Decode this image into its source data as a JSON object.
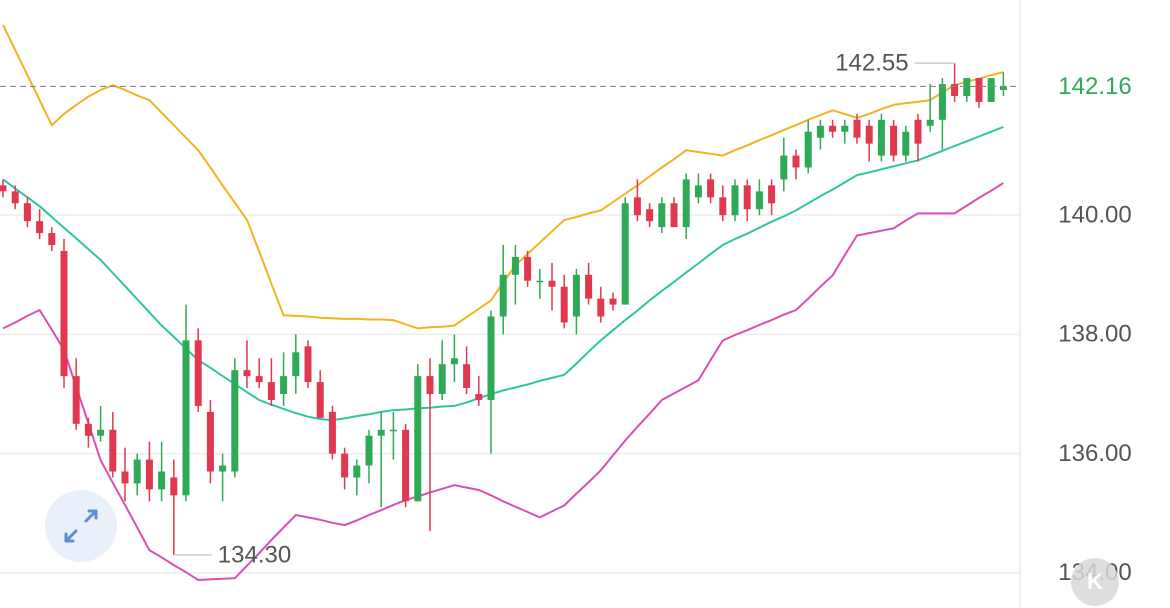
{
  "chart_data": {
    "type": "candlestick",
    "ylim": [
      133.41,
      143.61
    ],
    "yticks": [
      {
        "value": 134,
        "label": "134.00"
      },
      {
        "value": 136,
        "label": "136.00"
      },
      {
        "value": 138,
        "label": "138.00"
      },
      {
        "value": 140,
        "label": "140.00"
      }
    ],
    "grid": true,
    "up_color": "#2eaa57",
    "down_color": "#e0394f",
    "ohlc": [
      [
        140.5,
        140.6,
        140.3,
        140.4
      ],
      [
        140.4,
        140.5,
        140.1,
        140.2
      ],
      [
        140.2,
        140.3,
        139.8,
        139.9
      ],
      [
        139.9,
        140.1,
        139.6,
        139.7
      ],
      [
        139.7,
        139.8,
        139.4,
        139.5
      ],
      [
        139.4,
        139.6,
        137.1,
        137.3
      ],
      [
        137.3,
        137.6,
        136.4,
        136.5
      ],
      [
        136.5,
        136.6,
        136.1,
        136.3
      ],
      [
        136.3,
        136.8,
        136.2,
        136.4
      ],
      [
        136.4,
        136.7,
        135.6,
        135.7
      ],
      [
        135.7,
        136.1,
        135.2,
        135.5
      ],
      [
        135.5,
        136.0,
        135.3,
        135.9
      ],
      [
        135.9,
        136.2,
        135.2,
        135.4
      ],
      [
        135.4,
        136.2,
        135.2,
        135.7
      ],
      [
        135.6,
        135.9,
        134.3,
        135.3
      ],
      [
        135.3,
        138.5,
        135.2,
        137.9
      ],
      [
        137.9,
        138.1,
        136.7,
        136.8
      ],
      [
        136.7,
        136.9,
        135.5,
        135.7
      ],
      [
        135.7,
        136.0,
        135.2,
        135.8
      ],
      [
        135.7,
        137.6,
        135.6,
        137.4
      ],
      [
        137.4,
        137.9,
        137.1,
        137.3
      ],
      [
        137.3,
        137.6,
        137.1,
        137.2
      ],
      [
        137.2,
        137.6,
        136.8,
        136.9
      ],
      [
        137.0,
        137.7,
        136.8,
        137.3
      ],
      [
        137.3,
        138.0,
        137.0,
        137.7
      ],
      [
        137.8,
        137.9,
        137.1,
        137.2
      ],
      [
        137.2,
        137.4,
        136.6,
        136.6
      ],
      [
        136.7,
        136.8,
        135.9,
        136.0
      ],
      [
        136.0,
        136.1,
        135.4,
        135.6
      ],
      [
        135.6,
        135.9,
        135.3,
        135.8
      ],
      [
        135.8,
        136.4,
        135.5,
        136.3
      ],
      [
        136.3,
        136.7,
        135.1,
        136.4
      ],
      [
        136.4,
        136.7,
        135.9,
        136.4
      ],
      [
        136.4,
        136.5,
        135.1,
        135.2
      ],
      [
        135.2,
        137.5,
        135.2,
        137.3
      ],
      [
        137.3,
        137.6,
        134.7,
        137.0
      ],
      [
        137.0,
        137.9,
        136.9,
        137.5
      ],
      [
        137.5,
        138.0,
        137.2,
        137.6
      ],
      [
        137.5,
        137.8,
        137.0,
        137.1
      ],
      [
        137.0,
        137.3,
        136.8,
        136.9
      ],
      [
        136.9,
        138.4,
        136.0,
        138.3
      ],
      [
        138.3,
        139.5,
        138.0,
        139.0
      ],
      [
        139.0,
        139.5,
        138.5,
        139.3
      ],
      [
        139.3,
        139.4,
        138.8,
        138.9
      ],
      [
        138.9,
        139.1,
        138.6,
        138.9
      ],
      [
        138.9,
        139.2,
        138.4,
        138.8
      ],
      [
        138.8,
        139.0,
        138.1,
        138.2
      ],
      [
        138.3,
        139.1,
        138.0,
        139.0
      ],
      [
        139.0,
        139.2,
        138.5,
        138.6
      ],
      [
        138.6,
        138.8,
        138.2,
        138.3
      ],
      [
        138.6,
        138.7,
        138.4,
        138.5
      ],
      [
        138.5,
        140.3,
        138.5,
        140.2
      ],
      [
        140.3,
        140.6,
        139.9,
        140.0
      ],
      [
        140.1,
        140.2,
        139.8,
        139.9
      ],
      [
        139.8,
        140.3,
        139.7,
        140.2
      ],
      [
        140.2,
        140.3,
        139.8,
        139.8
      ],
      [
        139.8,
        140.7,
        139.6,
        140.6
      ],
      [
        140.3,
        140.7,
        140.2,
        140.5
      ],
      [
        140.6,
        140.7,
        140.2,
        140.3
      ],
      [
        140.3,
        140.5,
        139.9,
        140.0
      ],
      [
        140.0,
        140.6,
        139.9,
        140.5
      ],
      [
        140.5,
        140.6,
        139.9,
        140.1
      ],
      [
        140.1,
        140.6,
        140.0,
        140.4
      ],
      [
        140.5,
        140.6,
        140.0,
        140.2
      ],
      [
        140.6,
        141.3,
        140.4,
        141.0
      ],
      [
        141.0,
        141.1,
        140.6,
        140.8
      ],
      [
        140.8,
        141.6,
        140.7,
        141.4
      ],
      [
        141.3,
        141.6,
        141.1,
        141.5
      ],
      [
        141.5,
        141.6,
        141.3,
        141.4
      ],
      [
        141.4,
        141.6,
        141.2,
        141.5
      ],
      [
        141.6,
        141.7,
        141.2,
        141.3
      ],
      [
        141.5,
        141.6,
        140.9,
        141.2
      ],
      [
        141.0,
        141.7,
        140.9,
        141.6
      ],
      [
        141.5,
        141.6,
        140.9,
        141.0
      ],
      [
        141.0,
        141.5,
        140.9,
        141.4
      ],
      [
        141.6,
        141.7,
        140.9,
        141.2
      ],
      [
        141.5,
        142.2,
        141.4,
        141.6
      ],
      [
        141.6,
        142.3,
        141.1,
        142.2
      ],
      [
        142.2,
        142.55,
        141.9,
        142.0
      ],
      [
        142.0,
        142.3,
        141.9,
        142.3
      ],
      [
        142.3,
        142.3,
        141.8,
        141.9
      ],
      [
        141.9,
        142.3,
        141.9,
        142.3
      ],
      [
        142.1,
        142.4,
        142.0,
        142.16
      ]
    ],
    "lines": [
      {
        "color": "#f0b323",
        "values": [
          143.19,
          142.77,
          142.35,
          141.93,
          141.51,
          141.7,
          141.85,
          141.99,
          142.1,
          142.18,
          142.1,
          142.01,
          141.93,
          141.72,
          141.51,
          141.3,
          141.09,
          140.8,
          140.5,
          140.21,
          139.92,
          139.39,
          138.85,
          138.32,
          138.31,
          138.3,
          138.28,
          138.27,
          138.26,
          138.26,
          138.25,
          138.25,
          138.24,
          138.17,
          138.1,
          138.12,
          138.13,
          138.15,
          138.29,
          138.43,
          138.57,
          138.87,
          139.16,
          139.35,
          139.54,
          139.73,
          139.92,
          139.97,
          140.03,
          140.08,
          140.22,
          140.36,
          140.5,
          140.65,
          140.8,
          140.94,
          141.09,
          141.06,
          141.03,
          141.0,
          141.09,
          141.17,
          141.26,
          141.34,
          141.43,
          141.51,
          141.6,
          141.68,
          141.76,
          141.7,
          141.63,
          141.7,
          141.78,
          141.85,
          141.88,
          141.9,
          141.93,
          142.06,
          142.18,
          142.24,
          142.29,
          142.35,
          142.4
        ]
      },
      {
        "color": "#2fc5a0",
        "values": [
          140.6,
          140.45,
          140.3,
          140.15,
          139.97,
          139.79,
          139.61,
          139.43,
          139.25,
          139.03,
          138.81,
          138.59,
          138.37,
          138.15,
          137.96,
          137.76,
          137.57,
          137.44,
          137.3,
          137.17,
          137.03,
          136.9,
          136.82,
          136.75,
          136.68,
          136.62,
          136.58,
          136.56,
          136.59,
          136.63,
          136.66,
          136.7,
          136.73,
          136.74,
          136.76,
          136.77,
          136.79,
          136.8,
          136.86,
          136.93,
          137.0,
          137.06,
          137.11,
          137.16,
          137.22,
          137.27,
          137.32,
          137.51,
          137.71,
          137.9,
          138.07,
          138.24,
          138.4,
          138.57,
          138.73,
          138.88,
          139.04,
          139.19,
          139.35,
          139.5,
          139.6,
          139.69,
          139.79,
          139.89,
          139.98,
          140.08,
          140.2,
          140.32,
          140.43,
          140.55,
          140.67,
          140.72,
          140.77,
          140.82,
          140.87,
          140.92,
          141.0,
          141.08,
          141.16,
          141.24,
          141.32,
          141.4,
          141.48
        ]
      },
      {
        "color": "#d94fb3",
        "values": [
          138.1,
          138.2,
          138.31,
          138.41,
          138.08,
          137.74,
          137.12,
          136.51,
          135.89,
          135.51,
          135.14,
          134.76,
          134.38,
          134.26,
          134.13,
          134.01,
          133.88,
          133.89,
          133.9,
          133.91,
          134.12,
          134.33,
          134.55,
          134.76,
          134.97,
          134.93,
          134.89,
          134.84,
          134.8,
          134.88,
          134.97,
          135.05,
          135.14,
          135.22,
          135.28,
          135.35,
          135.41,
          135.47,
          135.43,
          135.39,
          135.3,
          135.2,
          135.11,
          135.02,
          134.93,
          135.03,
          135.13,
          135.33,
          135.52,
          135.72,
          135.97,
          136.22,
          136.45,
          136.67,
          136.9,
          137.01,
          137.12,
          137.23,
          137.57,
          137.9,
          137.99,
          138.07,
          138.16,
          138.24,
          138.33,
          138.41,
          138.6,
          138.8,
          138.99,
          139.33,
          139.66,
          139.7,
          139.74,
          139.78,
          139.91,
          140.03,
          140.03,
          140.03,
          140.03,
          140.16,
          140.29,
          140.41,
          140.54
        ]
      }
    ],
    "high_label": "142.55",
    "low_label": "134.30",
    "last_price": {
      "value": 142.16,
      "label": "142.16",
      "color": "#2eaa57"
    }
  },
  "controls": {
    "kline_button": "K"
  }
}
